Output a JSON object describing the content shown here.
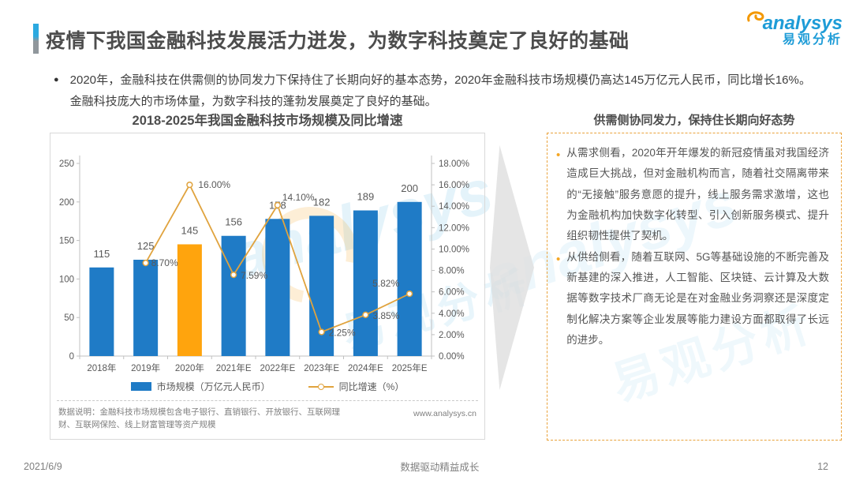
{
  "header": {
    "title": "疫情下我国金融科技发展活力迸发，为数字科技奠定了良好的基础",
    "logo": {
      "brand": "analysys",
      "brand_cn": "易观分析"
    }
  },
  "intro": {
    "bullet": "2020年，金融科技在供需侧的协同发力下保持住了长期向好的基本态势，2020年金融科技市场规模仍高达145万亿元人民币，同比增长16%。金融科技庞大的市场体量，为数字科技的蓬勃发展奠定了良好的基础。"
  },
  "chart_data": {
    "type": "bar",
    "title": "2018-2025年我国金融科技市场规模及同比增速",
    "categories": [
      "2018年",
      "2019年",
      "2020年",
      "2021年E",
      "2022年E",
      "2023年E",
      "2024年E",
      "2025年E"
    ],
    "series": [
      {
        "name": "市场规模（万亿元人民币）",
        "type": "bar",
        "values": [
          115,
          125,
          145,
          156,
          178,
          182,
          189,
          200
        ],
        "color": "#1F7BC6",
        "highlight_index": 2,
        "highlight_color": "#FFA40D"
      },
      {
        "name": "同比增速（%）",
        "type": "line",
        "values": [
          null,
          8.7,
          16.0,
          7.59,
          14.1,
          2.25,
          3.85,
          5.82
        ],
        "labels": [
          null,
          "8.70%",
          "16.00%",
          "7.59%",
          "14.10%",
          "2.25%",
          "3.85%",
          "5.82%"
        ],
        "color": "#E0A33E"
      }
    ],
    "left_axis": {
      "min": 0,
      "max": 250,
      "ticks": [
        0,
        50,
        100,
        150,
        200,
        250
      ]
    },
    "right_axis": {
      "min": 0,
      "max": 18,
      "ticks": [
        "0.00%",
        "2.00%",
        "4.00%",
        "6.00%",
        "8.00%",
        "10.00%",
        "12.00%",
        "14.00%",
        "16.00%",
        "18.00%"
      ]
    },
    "legend": [
      "市场规模（万亿元人民币）",
      "同比增速（%）"
    ],
    "grid": false,
    "legend_position": "bottom"
  },
  "chart_note": {
    "text": "数据说明：金融科技市场规模包含电子银行、直销银行、开放银行、互联网理财、互联网保险、线上财富管理等资产规模",
    "website": "www.analysys.cn"
  },
  "right_panel": {
    "title": "供需侧协同发力，保持住长期向好态势",
    "bullets": [
      "从需求侧看，2020年开年爆发的新冠疫情虽对我国经济造成巨大挑战，但对金融机构而言，随着社交隔离带来的“无接触”服务意愿的提升，线上服务需求激增，这也为金融机构加快数字化转型、引入创新服务模式、提升组织韧性提供了契机。",
      "从供给侧看，随着互联网、5G等基础设施的不断完善及新基建的深入推进，人工智能、区块链、云计算及大数据等数字技术厂商无论是在对金融业务洞察还是深度定制化解决方案等企业发展等能力建设方面都取得了长远的进步。"
    ]
  },
  "watermark": {
    "brand": "analysys",
    "brand_cn": "易观分析"
  },
  "footer": {
    "date": "2021/6/9",
    "slogan": "数据驱动精益成长",
    "page": "12"
  },
  "colors": {
    "bar_blue": "#1F7BC6",
    "bar_orange": "#FFA40D",
    "line_orange": "#E0A33E",
    "logo_blue": "#1E9CD7",
    "logo_orange": "#F39800",
    "panel_border": "#E9A23B"
  }
}
